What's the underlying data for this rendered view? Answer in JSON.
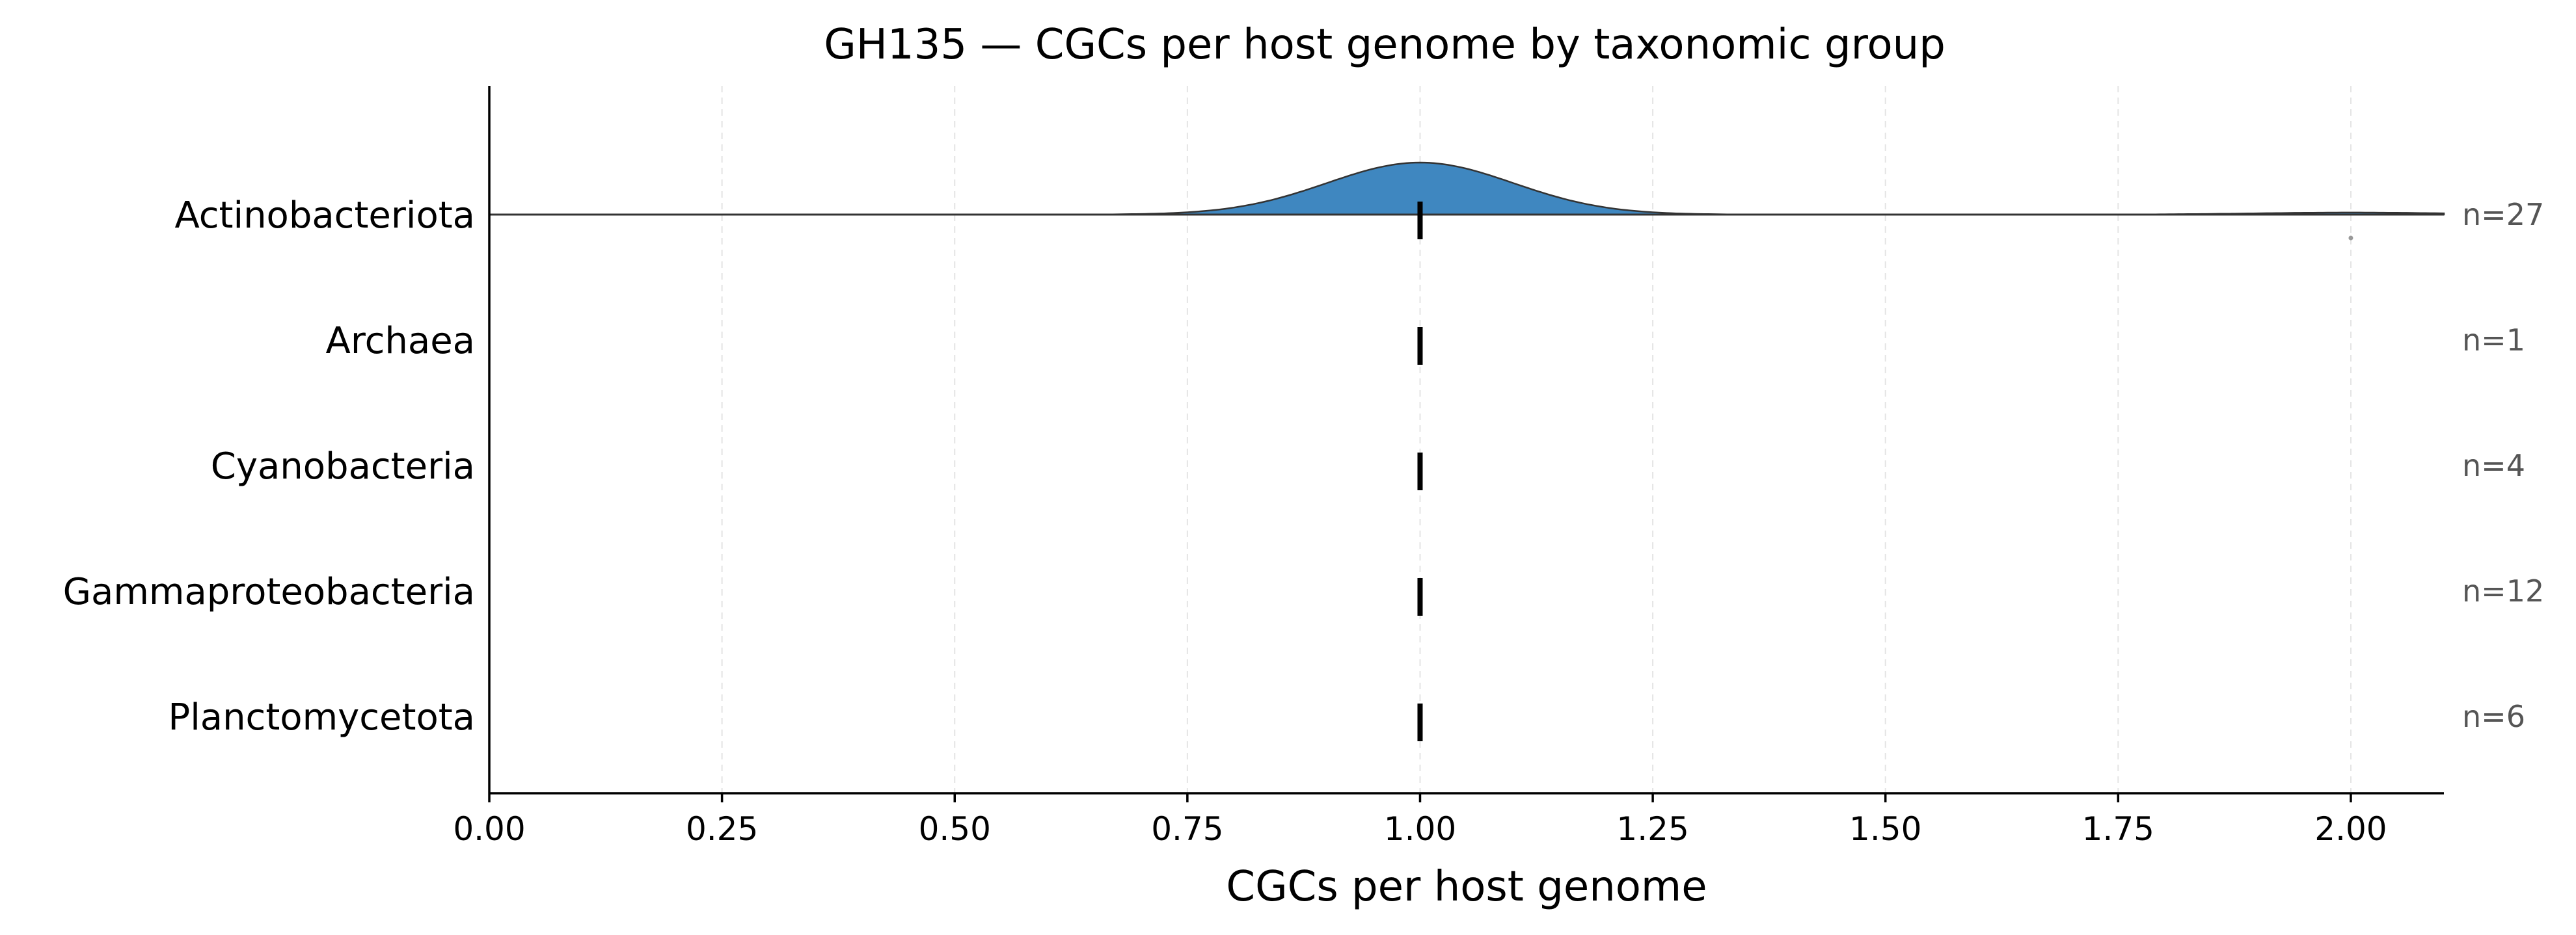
{
  "chart_data": {
    "type": "ridgeline",
    "title": "GH135 — CGCs per host genome by taxonomic group",
    "xlabel": "CGCs per host genome",
    "ylabel": "",
    "xlim": [
      0.0,
      2.1
    ],
    "xticks": [
      0.0,
      0.25,
      0.5,
      0.75,
      1.0,
      1.25,
      1.5,
      1.75,
      2.0
    ],
    "xtick_labels": [
      "0.00",
      "0.25",
      "0.50",
      "0.75",
      "1.00",
      "1.25",
      "1.50",
      "1.75",
      "2.00"
    ],
    "grid": "vertical dashed",
    "fill_color": "#3f87c0",
    "groups": [
      {
        "name": "Actinobacteriota",
        "n_label": "n=27",
        "n": 27,
        "median": 1.0,
        "values": [
          1,
          1,
          1,
          1,
          1,
          1,
          1,
          1,
          1,
          1,
          1,
          1,
          1,
          1,
          1,
          1,
          1,
          1,
          1,
          1,
          1,
          1,
          1,
          1,
          1,
          1,
          2
        ],
        "has_density": true
      },
      {
        "name": "Archaea",
        "n_label": "n=1",
        "n": 1,
        "median": 1.0,
        "values": [
          1
        ],
        "has_density": false
      },
      {
        "name": "Cyanobacteria",
        "n_label": "n=4",
        "n": 4,
        "median": 1.0,
        "values": [
          1,
          1,
          1,
          1
        ],
        "has_density": false
      },
      {
        "name": "Gammaproteobacteria",
        "n_label": "n=12",
        "n": 12,
        "median": 1.0,
        "values": [
          1,
          1,
          1,
          1,
          1,
          1,
          1,
          1,
          1,
          1,
          1,
          1
        ],
        "has_density": false
      },
      {
        "name": "Planctomycetota",
        "n_label": "n=6",
        "n": 6,
        "median": 1.0,
        "values": [
          1,
          1,
          1,
          1,
          1,
          1
        ],
        "has_density": false
      }
    ]
  }
}
